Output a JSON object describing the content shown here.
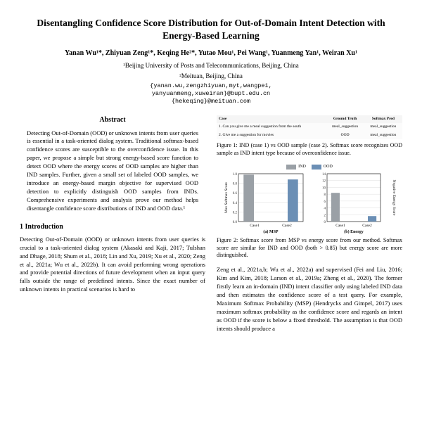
{
  "title": "Disentangling Confidence Score Distribution for Out-of-Domain Intent Detection with Energy-Based Learning",
  "authors": "Yanan Wu¹*, Zhiyuan Zeng¹*, Keqing He²*, Yutao Mou¹, Pei Wang¹, Yuanmeng Yan¹, Weiran Xu¹",
  "affil1": "¹Beijing University of Posts and Telecommunications, Beijing, China",
  "affil2": "²Meituan, Beijing, China",
  "email1": "{yanan.wu,zengzhiyuan,myt,wangpei,",
  "email2": "yanyuanmeng,xuweiran}@bupt.edu.cn",
  "email3": "{hekeqing}@meituan.com",
  "abstract_head": "Abstract",
  "abstract": "Detecting Out-of-Domain (OOD) or unknown intents from user queries is essential in a task-oriented dialog system. Traditional softmax-based confidence scores are susceptible to the overconfidence issue. In this paper, we propose a simple but strong energy-based score function to detect OOD where the energy scores of OOD samples are higher than IND samples. Further, given a small set of labeled OOD samples, we introduce an energy-based margin objective for supervised OOD detection to explicitly distinguish OOD samples from INDs. Comprehensive experiments and analysis prove our method helps disentangle confidence score distributions of IND and OOD data.¹",
  "sec1_head": "1   Introduction",
  "sec1_body": "Detecting Out-of-Domain (OOD) or unknown intents from user queries is crucial to a task-oriented dialog system (Akasaki and Kaji, 2017; Tulshan and Dhage, 2018; Shum et al., 2018; Lin and Xu, 2019; Xu et al., 2020; Zeng et al., 2021a; Wu et al., 2022b). It can avoid performing wrong operations and provide potential directions of future development when an input query falls outside the range of predefined intents. Since the exact number of unknown intents in practical scenarios is hard to",
  "fig1": {
    "headers": [
      "Case",
      "Ground Truth",
      "Softmax Pred"
    ],
    "rows": [
      [
        "1. Can you give me a meal suggestion from the south",
        "meal_suggestion",
        "meal_suggestion"
      ],
      [
        "2. Give me a suggestion for movies",
        "OOD",
        "meal_suggestion"
      ]
    ],
    "caption": "Figure 1: IND (case 1) vs OOD sample (case 2). Softmax score recognizes OOD sample as IND intent type because of overconfidence issue."
  },
  "fig2": {
    "legend": {
      "ind": "IND",
      "ood": "OOD"
    },
    "colors": {
      "ind": "#9aa0a6",
      "ood": "#6b8fb5",
      "grid": "#dddddd",
      "bg": "#ffffff",
      "axis": "#000000"
    },
    "left": {
      "ylabel": "Max Softmax Score",
      "ylim": [
        0.0,
        1.0
      ],
      "ytick_step": 0.2,
      "categories": [
        "Case1",
        "Case2"
      ],
      "ind_values": [
        0.98,
        0.0
      ],
      "ood_values": [
        0.0,
        0.88
      ],
      "xlabel": "(a) MSP"
    },
    "right": {
      "ylabel": "Negative Energy Score",
      "ylim": [
        0,
        14
      ],
      "ytick_step": 2,
      "categories": [
        "Case1",
        "Case2"
      ],
      "ind_values": [
        8.4,
        0.0
      ],
      "ood_values": [
        0.0,
        1.6
      ],
      "xlabel": "(b) Energy"
    },
    "caption": "Figure 2: Softmax score from MSP vs energy score from our method. Softmax score are similar for IND and OOD (both > 0.85) but energy score are more distinguished."
  },
  "right_para": "Zeng et al., 2021a,b; Wu et al., 2022a) and supervised (Fei and Liu, 2016; Kim and Kim, 2018; Larson et al., 2019a; Zheng et al., 2020). The former firstly learn an in-domain (IND) intent classifier only using labeled IND data and then estimates the confidence score of a test query. For example, Maximum Softmax Probability (MSP) (Hendrycks and Gimpel, 2017) uses maximum softmax probability as the confidence score and regards an intent as OOD if the score is below a fixed threshold. The assumption is that OOD intents should produce a"
}
